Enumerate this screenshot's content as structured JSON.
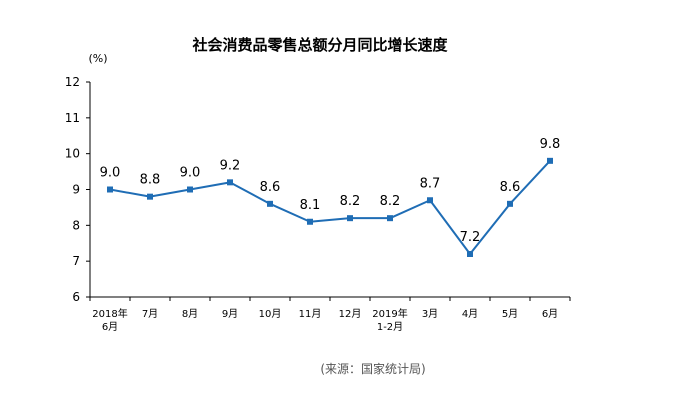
{
  "chart_data": {
    "type": "line",
    "title": "社会消费品零售总额分月同比增长速度",
    "unit": "(%)",
    "source": "(来源：国家统计局)",
    "ylim": [
      6,
      12
    ],
    "yticks": [
      6,
      7,
      8,
      9,
      10,
      11,
      12
    ],
    "grid": false,
    "categories": [
      [
        "2018年",
        "6月"
      ],
      [
        "7月"
      ],
      [
        "8月"
      ],
      [
        "9月"
      ],
      [
        "10月"
      ],
      [
        "11月"
      ],
      [
        "12月"
      ],
      [
        "2019年",
        "1-2月"
      ],
      [
        "3月"
      ],
      [
        "4月"
      ],
      [
        "5月"
      ],
      [
        "6月"
      ]
    ],
    "series": [
      {
        "values": [
          9.0,
          8.8,
          9.0,
          9.2,
          8.6,
          8.1,
          8.2,
          8.2,
          8.7,
          7.2,
          8.6,
          9.8
        ],
        "labels": [
          "9.0",
          "8.8",
          "9.0",
          "9.2",
          "8.6",
          "8.1",
          "8.2",
          "8.2",
          "8.7",
          "7.2",
          "8.6",
          "9.8"
        ]
      }
    ],
    "colors": {
      "line": "#1f6db5",
      "axis": "#000000"
    }
  }
}
